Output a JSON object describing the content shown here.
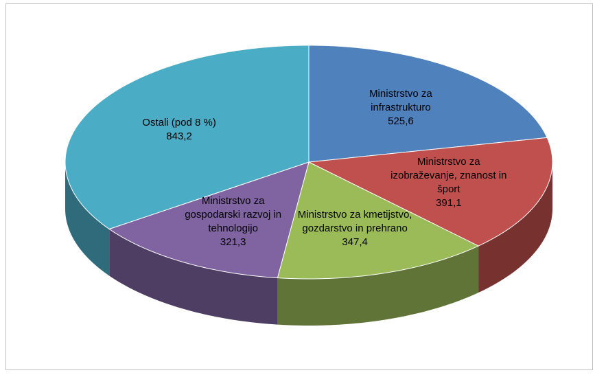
{
  "chart_data": {
    "type": "pie3d",
    "categories": [
      "Ministrstvo za infrastrukturo",
      "Ministrstvo za izobraževanje, znanost in šport",
      "Ministrstvo za kmetijstvo, gozdarstvo in prehrano",
      "Ministrstvo za gospodarski razvoj in tehnologijo",
      "Ostali (pod 8 %)"
    ],
    "values": [
      525.6,
      391.1,
      347.4,
      321.3,
      843.2
    ],
    "value_labels": [
      "525,6",
      "391,1",
      "347,4",
      "321,3",
      "843,2"
    ],
    "colors": [
      "#4f81bd",
      "#c0504d",
      "#9bbb59",
      "#8064a2",
      "#4bacc6"
    ]
  }
}
